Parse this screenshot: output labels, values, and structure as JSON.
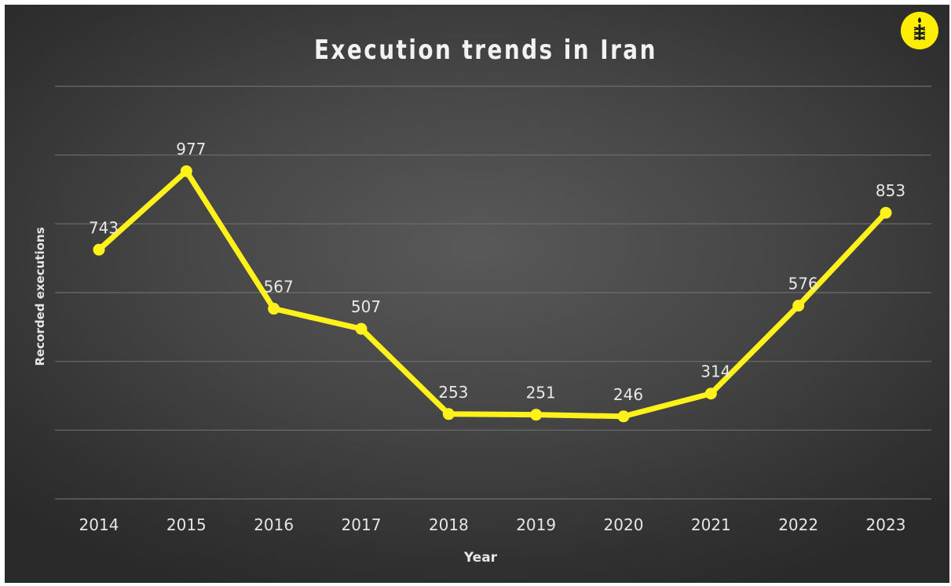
{
  "chart_data": {
    "type": "line",
    "title": "Execution trends in Iran",
    "xlabel": "Year",
    "ylabel": "Recorded executions",
    "categories": [
      "2014",
      "2015",
      "2016",
      "2017",
      "2018",
      "2019",
      "2020",
      "2021",
      "2022",
      "2023"
    ],
    "series": [
      {
        "values": [
          743,
          977,
          567,
          507,
          253,
          251,
          246,
          314,
          576,
          853
        ],
        "data_labels": [
          "743",
          "977",
          "567",
          "507",
          "253",
          "251",
          "246",
          "314",
          "576",
          "853"
        ]
      }
    ],
    "ylim": [
      0,
      1230
    ],
    "y_gridlines": [
      0,
      205,
      410,
      615,
      820,
      1025,
      1230
    ],
    "y_tick_labels_shown": false,
    "grid": true,
    "legend": "none",
    "colors": {
      "line": "#fff21a",
      "title": "#f2f2f2",
      "axis_text": "#e6e6e6",
      "data_label": "#e8e8e8",
      "gridline": "#6e6e6e",
      "background": "#464646"
    }
  },
  "logo": {
    "icon": "candle-in-barbed-wire-icon",
    "color": "#ffee00"
  }
}
